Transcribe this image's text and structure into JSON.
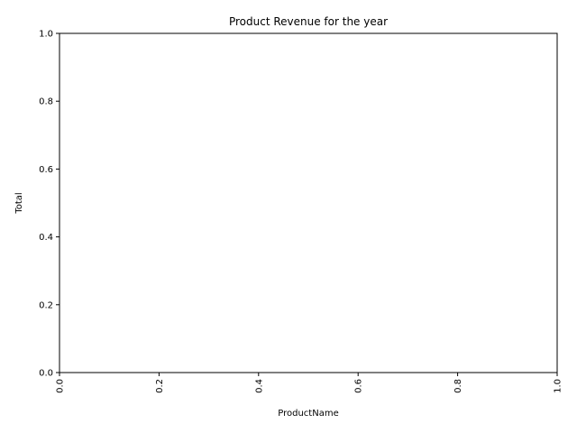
{
  "chart_data": {
    "type": "bar",
    "title": "Product Revenue for the year",
    "xlabel": "ProductName",
    "ylabel": "Total",
    "categories": [],
    "values": [],
    "xlim": [
      0,
      1
    ],
    "ylim": [
      0,
      1
    ],
    "xticks": [
      "0.0",
      "0.2",
      "0.4",
      "0.6",
      "0.8",
      "1.0"
    ],
    "yticks": [
      "0.0",
      "0.2",
      "0.4",
      "0.6",
      "0.8",
      "1.0"
    ],
    "x_tick_rotation": "vertical",
    "grid": false,
    "legend": "none"
  }
}
